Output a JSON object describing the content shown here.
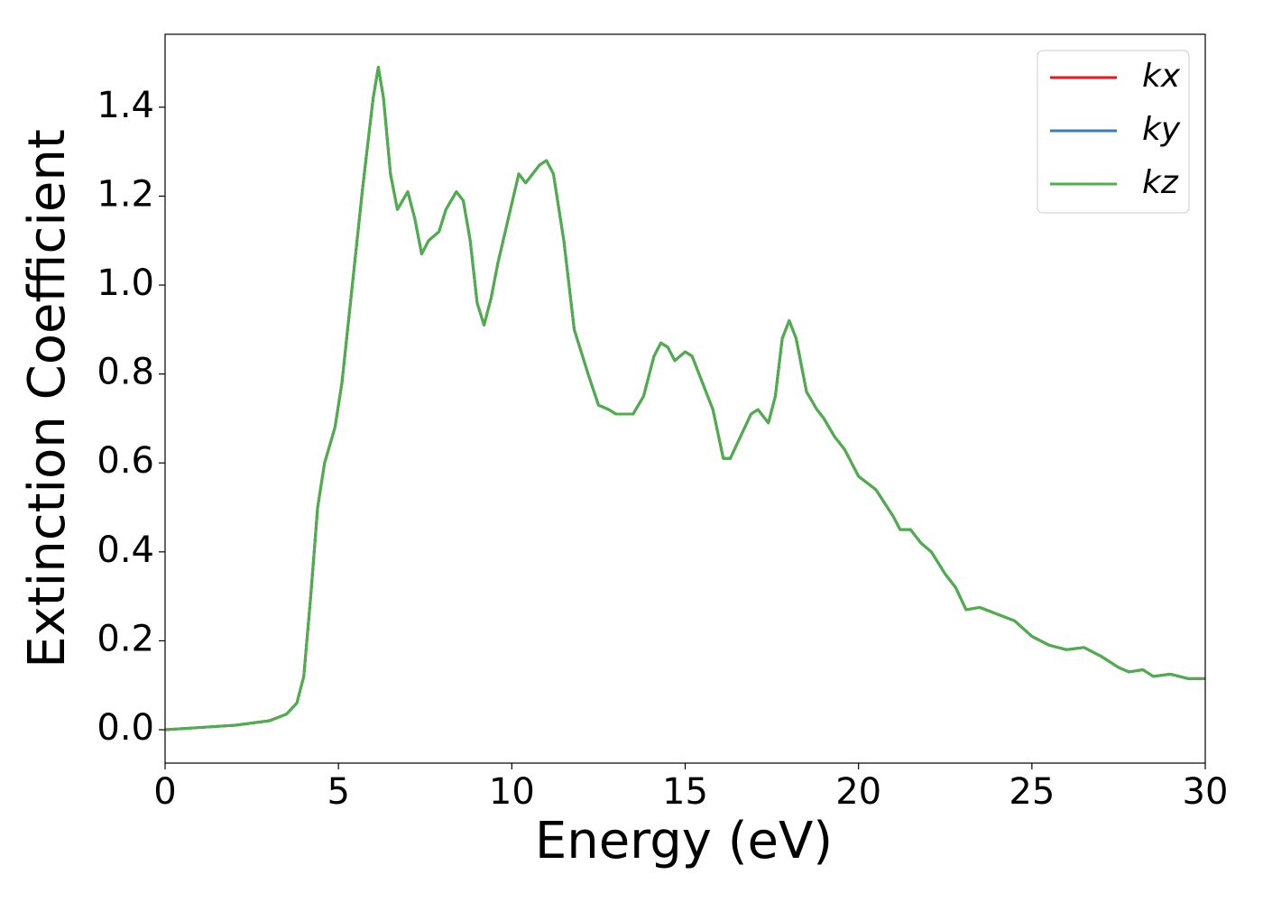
{
  "chart_data": {
    "type": "line",
    "xlabel": "Energy (eV)",
    "ylabel": "Extinction Coefficient",
    "xlim": [
      0,
      30
    ],
    "ylim": [
      -0.075,
      1.564
    ],
    "xticks": [
      0,
      5,
      10,
      15,
      20,
      25,
      30
    ],
    "yticks": [
      {
        "value": 0,
        "label": "0.0"
      },
      0.2,
      0.4,
      0.6,
      0.8,
      {
        "value": 1,
        "label": "1.0"
      },
      1.2,
      1.4
    ],
    "legend": "upper right",
    "x": [
      0,
      1,
      2,
      3,
      3.5,
      3.8,
      4.0,
      4.2,
      4.4,
      4.6,
      4.9,
      5.1,
      5.4,
      5.7,
      6.0,
      6.15,
      6.3,
      6.5,
      6.7,
      6.85,
      7.0,
      7.2,
      7.4,
      7.6,
      7.9,
      8.1,
      8.4,
      8.6,
      8.8,
      9.0,
      9.2,
      9.4,
      9.6,
      9.9,
      10.2,
      10.4,
      10.6,
      10.8,
      11.0,
      11.2,
      11.5,
      11.8,
      12.0,
      12.2,
      12.5,
      12.8,
      13.0,
      13.5,
      13.8,
      14.1,
      14.3,
      14.5,
      14.7,
      15.0,
      15.2,
      15.5,
      15.8,
      16.1,
      16.3,
      16.6,
      16.9,
      17.1,
      17.4,
      17.6,
      17.8,
      18.0,
      18.2,
      18.5,
      18.8,
      19.0,
      19.3,
      19.6,
      20.0,
      20.5,
      21.0,
      21.2,
      21.5,
      21.8,
      22.1,
      22.5,
      22.8,
      23.1,
      23.5,
      24.0,
      24.5,
      25.0,
      25.5,
      26.0,
      26.5,
      27.0,
      27.5,
      27.8,
      28.2,
      28.5,
      29.0,
      29.5,
      30
    ],
    "series": [
      {
        "name": "kx",
        "color": "#e41a1c",
        "values": [
          0.0,
          0.005,
          0.01,
          0.02,
          0.035,
          0.06,
          0.12,
          0.3,
          0.5,
          0.6,
          0.68,
          0.78,
          1.0,
          1.22,
          1.42,
          1.49,
          1.42,
          1.25,
          1.17,
          1.19,
          1.21,
          1.15,
          1.07,
          1.1,
          1.12,
          1.17,
          1.21,
          1.19,
          1.1,
          0.96,
          0.91,
          0.97,
          1.05,
          1.15,
          1.25,
          1.23,
          1.25,
          1.27,
          1.28,
          1.25,
          1.1,
          0.9,
          0.85,
          0.8,
          0.73,
          0.72,
          0.71,
          0.71,
          0.75,
          0.84,
          0.87,
          0.86,
          0.83,
          0.85,
          0.84,
          0.78,
          0.72,
          0.61,
          0.61,
          0.66,
          0.71,
          0.72,
          0.69,
          0.75,
          0.88,
          0.92,
          0.88,
          0.76,
          0.72,
          0.7,
          0.66,
          0.63,
          0.57,
          0.54,
          0.48,
          0.45,
          0.45,
          0.42,
          0.4,
          0.35,
          0.32,
          0.27,
          0.275,
          0.26,
          0.245,
          0.21,
          0.19,
          0.18,
          0.185,
          0.165,
          0.14,
          0.13,
          0.135,
          0.12,
          0.125,
          0.115,
          0.115
        ]
      },
      {
        "name": "ky",
        "color": "#377eb8",
        "values": [
          0.0,
          0.005,
          0.01,
          0.02,
          0.035,
          0.06,
          0.12,
          0.3,
          0.5,
          0.6,
          0.68,
          0.78,
          1.0,
          1.22,
          1.42,
          1.49,
          1.42,
          1.25,
          1.17,
          1.19,
          1.21,
          1.15,
          1.07,
          1.1,
          1.12,
          1.17,
          1.21,
          1.19,
          1.1,
          0.96,
          0.91,
          0.97,
          1.05,
          1.15,
          1.25,
          1.23,
          1.25,
          1.27,
          1.28,
          1.25,
          1.1,
          0.9,
          0.85,
          0.8,
          0.73,
          0.72,
          0.71,
          0.71,
          0.75,
          0.84,
          0.87,
          0.86,
          0.83,
          0.85,
          0.84,
          0.78,
          0.72,
          0.61,
          0.61,
          0.66,
          0.71,
          0.72,
          0.69,
          0.75,
          0.88,
          0.92,
          0.88,
          0.76,
          0.72,
          0.7,
          0.66,
          0.63,
          0.57,
          0.54,
          0.48,
          0.45,
          0.45,
          0.42,
          0.4,
          0.35,
          0.32,
          0.27,
          0.275,
          0.26,
          0.245,
          0.21,
          0.19,
          0.18,
          0.185,
          0.165,
          0.14,
          0.13,
          0.135,
          0.12,
          0.125,
          0.115,
          0.115
        ]
      },
      {
        "name": "kz",
        "color": "#4daf4a",
        "values": [
          0.0,
          0.005,
          0.01,
          0.02,
          0.035,
          0.06,
          0.12,
          0.3,
          0.5,
          0.6,
          0.68,
          0.78,
          1.0,
          1.22,
          1.42,
          1.49,
          1.42,
          1.25,
          1.17,
          1.19,
          1.21,
          1.15,
          1.07,
          1.1,
          1.12,
          1.17,
          1.21,
          1.19,
          1.1,
          0.96,
          0.91,
          0.97,
          1.05,
          1.15,
          1.25,
          1.23,
          1.25,
          1.27,
          1.28,
          1.25,
          1.1,
          0.9,
          0.85,
          0.8,
          0.73,
          0.72,
          0.71,
          0.71,
          0.75,
          0.84,
          0.87,
          0.86,
          0.83,
          0.85,
          0.84,
          0.78,
          0.72,
          0.61,
          0.61,
          0.66,
          0.71,
          0.72,
          0.69,
          0.75,
          0.88,
          0.92,
          0.88,
          0.76,
          0.72,
          0.7,
          0.66,
          0.63,
          0.57,
          0.54,
          0.48,
          0.45,
          0.45,
          0.42,
          0.4,
          0.35,
          0.32,
          0.27,
          0.275,
          0.26,
          0.245,
          0.21,
          0.19,
          0.18,
          0.185,
          0.165,
          0.14,
          0.13,
          0.135,
          0.12,
          0.125,
          0.115,
          0.115
        ]
      }
    ]
  }
}
